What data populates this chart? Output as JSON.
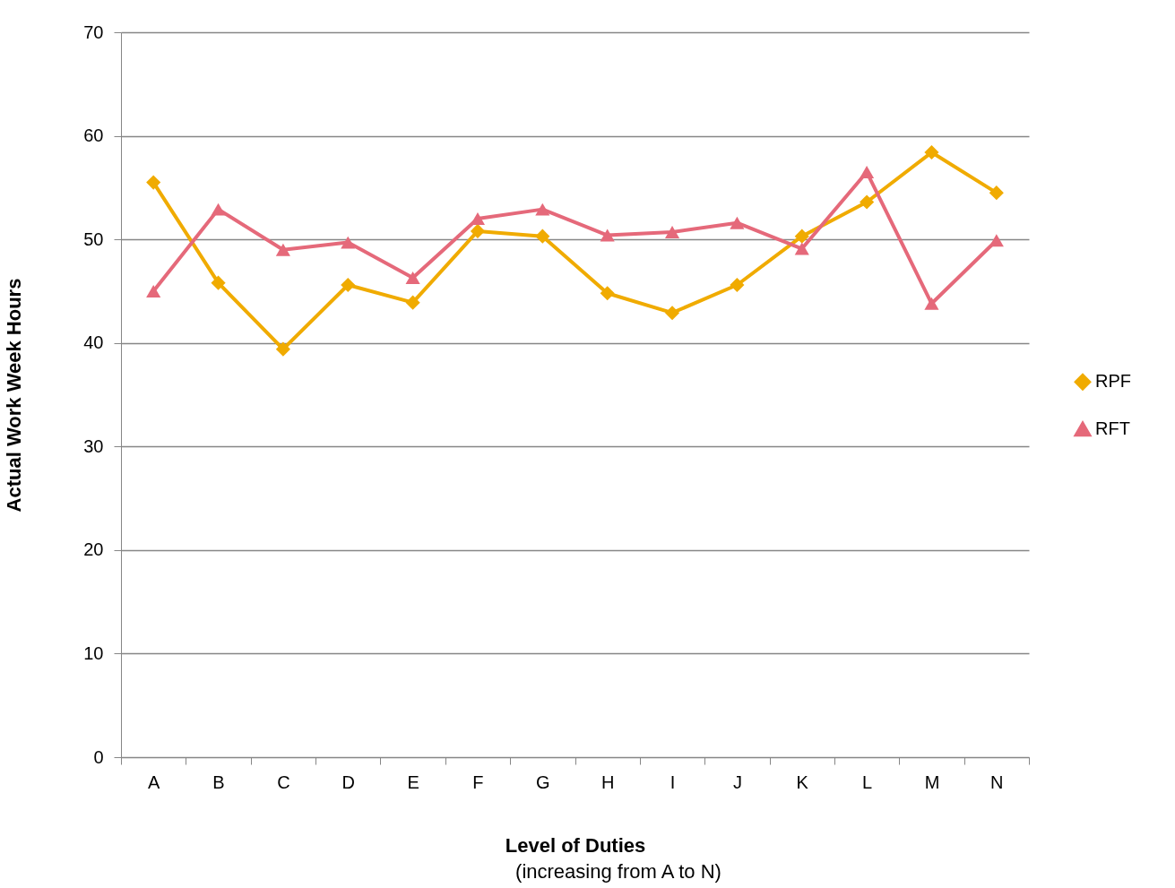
{
  "chart_data": {
    "type": "line",
    "xlabel": "Level of Duties",
    "ylabel": "Actual Work Week Hours",
    "annotations": [
      "(increasing from A to N)"
    ],
    "categories": [
      "A",
      "B",
      "C",
      "D",
      "E",
      "F",
      "G",
      "H",
      "I",
      "J",
      "K",
      "L",
      "M",
      "N"
    ],
    "ylim": [
      0,
      70
    ],
    "yticks": [
      0,
      10,
      20,
      30,
      40,
      50,
      60,
      70
    ],
    "grid": "y",
    "legend": "right",
    "series": [
      {
        "name": "RPF",
        "color": "#f0ab00",
        "marker": "diamond",
        "values": [
          55.5,
          45.8,
          39.4,
          45.6,
          43.9,
          50.8,
          50.3,
          44.8,
          42.9,
          45.6,
          50.3,
          53.6,
          58.4,
          54.5
        ]
      },
      {
        "name": "RFT",
        "color": "#e5697a",
        "marker": "triangle",
        "values": [
          45.0,
          52.9,
          49.0,
          49.7,
          46.3,
          52.0,
          52.9,
          50.4,
          50.7,
          51.6,
          49.1,
          56.5,
          43.8,
          49.9
        ]
      }
    ]
  }
}
